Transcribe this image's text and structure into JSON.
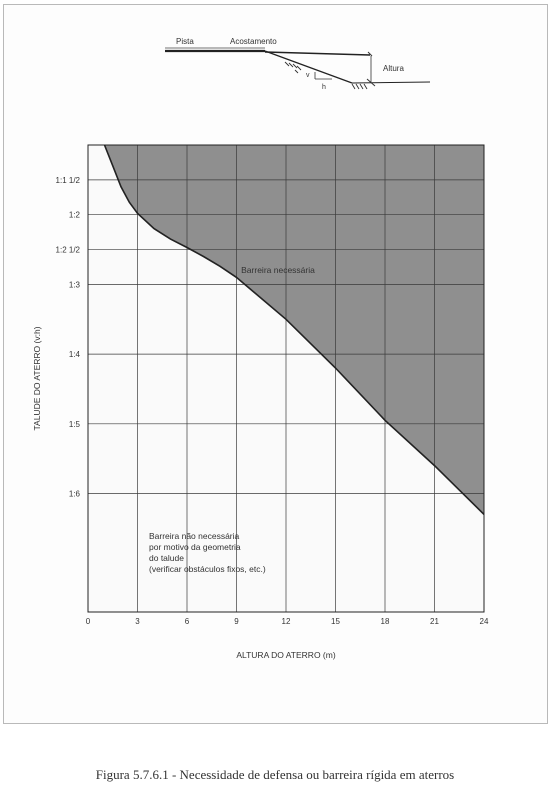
{
  "sketch": {
    "pista_label": "Pista",
    "acostamento_label": "Acostamento",
    "altura_label": "Altura",
    "v_label": "v",
    "h_label": "h"
  },
  "chart_data": {
    "type": "area",
    "xlabel": "ALTURA DO ATERRO (m)",
    "ylabel": "TALUDE DO ATERRO (v:h)",
    "xlim": [
      0,
      24
    ],
    "xticks": [
      0,
      3,
      6,
      9,
      12,
      15,
      18,
      21,
      24
    ],
    "ylim": [
      1.0,
      7.7
    ],
    "y_scale": "reciprocal of slope (h/v)",
    "yticks": [
      {
        "label": "1:1  1/2",
        "value": 1.5
      },
      {
        "label": "1:2",
        "value": 2
      },
      {
        "label": "1:2  1/2",
        "value": 2.5
      },
      {
        "label": "1:3",
        "value": 3
      },
      {
        "label": "1:4",
        "value": 4
      },
      {
        "label": "1:5",
        "value": 5
      },
      {
        "label": "1:6",
        "value": 6
      }
    ],
    "grid": true,
    "boundary": {
      "x": [
        1.0,
        1.5,
        2.0,
        2.5,
        3.0,
        4.0,
        5.0,
        6.0,
        7.0,
        8.0,
        9.0,
        12.0,
        15.0,
        18.0,
        21.0,
        24.0
      ],
      "y": [
        1.0,
        1.3,
        1.6,
        1.82,
        1.98,
        2.2,
        2.35,
        2.47,
        2.6,
        2.74,
        2.9,
        3.5,
        4.2,
        4.95,
        5.6,
        6.3
      ]
    },
    "annotations": {
      "needed": "Barreira necessária",
      "not_needed": [
        "Barreira não necessária",
        "por motivo da geometria",
        "do talude",
        "(verificar obstáculos fixos, etc.)"
      ]
    },
    "colors": {
      "needed_fill": "#8f8f8f",
      "not_needed_fill": "#fafafa",
      "grid": "#3a3a3a"
    }
  },
  "caption": "Figura 5.7.6.1 - Necessidade de defensa ou barreira rígida em aterros"
}
